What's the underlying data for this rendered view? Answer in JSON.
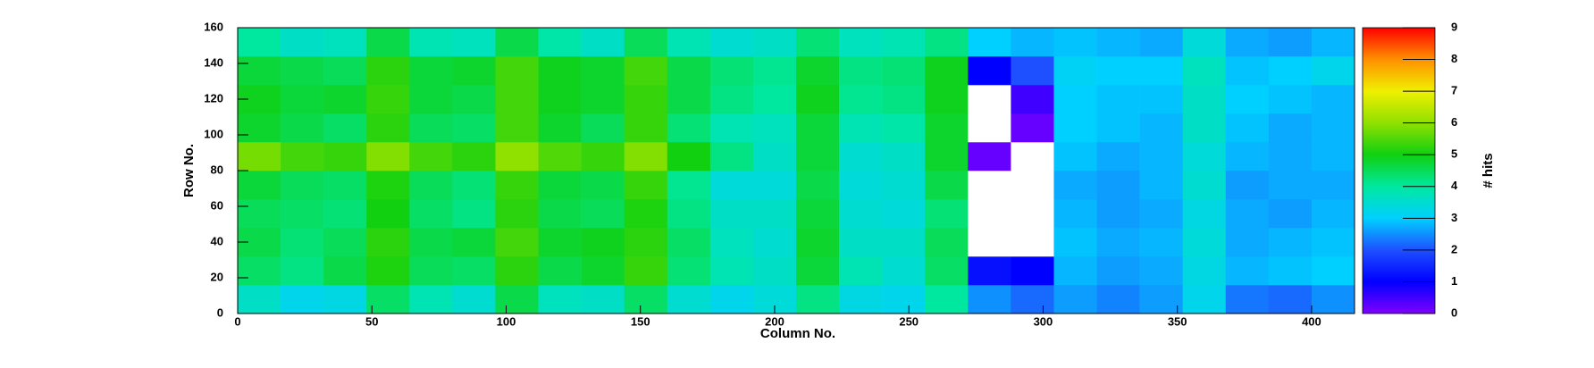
{
  "chart_data": {
    "type": "heatmap",
    "xlabel": "Column No.",
    "ylabel": "Row No.",
    "colorbar_label": "# hits",
    "xlim": [
      0,
      416
    ],
    "ylim": [
      0,
      160
    ],
    "zlim": [
      0,
      9
    ],
    "xticks": [
      0,
      50,
      100,
      150,
      200,
      250,
      300,
      350,
      400
    ],
    "yticks": [
      0,
      20,
      40,
      60,
      80,
      100,
      120,
      140,
      160
    ],
    "zticks": [
      0,
      1,
      2,
      3,
      4,
      5,
      6,
      7,
      8,
      9
    ],
    "x_bins": [
      0,
      16,
      32,
      48,
      64,
      80,
      96,
      112,
      128,
      144,
      160,
      176,
      192,
      208,
      224,
      240,
      256,
      272,
      288,
      304,
      320,
      336,
      352,
      368,
      384,
      400,
      416
    ],
    "y_bins": [
      0,
      16,
      32,
      48,
      64,
      80,
      96,
      112,
      128,
      144,
      160
    ],
    "values": [
      [
        3.6,
        3.2,
        3.3,
        4.4,
        3.8,
        3.5,
        4.6,
        3.7,
        3.6,
        4.4,
        3.5,
        3.2,
        3.4,
        4.2,
        3.3,
        3.2,
        4.0,
        2.5,
        2.2,
        2.6,
        2.4,
        2.6,
        3.2,
        2.3,
        2.2,
        2.5
      ],
      [
        4.4,
        4.2,
        4.6,
        5.1,
        4.5,
        4.4,
        5.2,
        4.6,
        4.8,
        5.3,
        4.3,
        3.8,
        3.6,
        4.7,
        3.8,
        3.5,
        4.4,
        1.2,
        1.0,
        2.8,
        2.6,
        2.7,
        3.3,
        2.8,
        2.9,
        3.0
      ],
      [
        4.6,
        4.3,
        4.5,
        5.2,
        4.6,
        4.7,
        5.4,
        4.8,
        4.9,
        5.2,
        4.4,
        3.7,
        3.5,
        4.8,
        3.6,
        3.6,
        4.5,
        0,
        0,
        2.9,
        2.7,
        2.8,
        3.4,
        2.7,
        2.8,
        2.9
      ],
      [
        4.5,
        4.4,
        4.3,
        5.0,
        4.4,
        4.2,
        5.2,
        4.6,
        4.5,
        5.1,
        4.2,
        3.6,
        3.6,
        4.7,
        3.5,
        3.4,
        4.3,
        0,
        0,
        2.8,
        2.6,
        2.7,
        3.3,
        2.7,
        2.6,
        2.8
      ],
      [
        4.7,
        4.5,
        4.4,
        5.1,
        4.5,
        4.3,
        5.3,
        4.7,
        4.6,
        5.3,
        4.1,
        3.4,
        3.4,
        4.6,
        3.4,
        3.5,
        4.6,
        0,
        0,
        2.7,
        2.6,
        2.8,
        3.5,
        2.6,
        2.7,
        2.7
      ],
      [
        5.8,
        5.4,
        5.3,
        5.9,
        5.4,
        5.2,
        6.0,
        5.5,
        5.3,
        5.9,
        5.0,
        4.2,
        3.6,
        4.7,
        3.5,
        3.6,
        4.8,
        0.2,
        0,
        2.9,
        2.7,
        2.8,
        3.4,
        2.8,
        2.7,
        2.8
      ],
      [
        4.8,
        4.6,
        4.4,
        5.2,
        4.5,
        4.4,
        5.4,
        4.8,
        4.5,
        5.3,
        4.3,
        3.8,
        3.7,
        4.7,
        3.8,
        3.9,
        4.8,
        0,
        0.2,
        3.0,
        2.9,
        2.8,
        3.6,
        2.9,
        2.7,
        2.8
      ],
      [
        4.9,
        4.7,
        4.8,
        5.3,
        4.7,
        4.6,
        5.4,
        4.9,
        4.8,
        5.3,
        4.6,
        4.2,
        4.0,
        4.9,
        4.1,
        4.2,
        4.9,
        0,
        0.5,
        3.0,
        2.9,
        2.9,
        3.6,
        3.0,
        2.9,
        2.8
      ],
      [
        4.7,
        4.6,
        4.5,
        5.2,
        4.7,
        4.8,
        5.4,
        4.9,
        4.8,
        5.4,
        4.6,
        4.3,
        4.1,
        4.8,
        4.2,
        4.3,
        4.9,
        1.0,
        2.0,
        3.1,
        3.0,
        3.0,
        3.7,
        2.9,
        3.0,
        3.2
      ],
      [
        4.0,
        3.6,
        3.7,
        4.6,
        3.8,
        3.7,
        4.6,
        3.9,
        3.6,
        4.5,
        3.8,
        3.5,
        3.6,
        4.3,
        3.7,
        3.8,
        4.2,
        3.0,
        2.8,
        2.9,
        2.8,
        2.7,
        3.4,
        2.7,
        2.6,
        2.8
      ]
    ],
    "colorscale": [
      "#8000ff",
      "#0000ff",
      "#1e50ff",
      "#00d0ff",
      "#00e8a0",
      "#10d010",
      "#90e000",
      "#f0f000",
      "#ff9000",
      "#ff0000"
    ],
    "empty_color": "#ffffff"
  }
}
